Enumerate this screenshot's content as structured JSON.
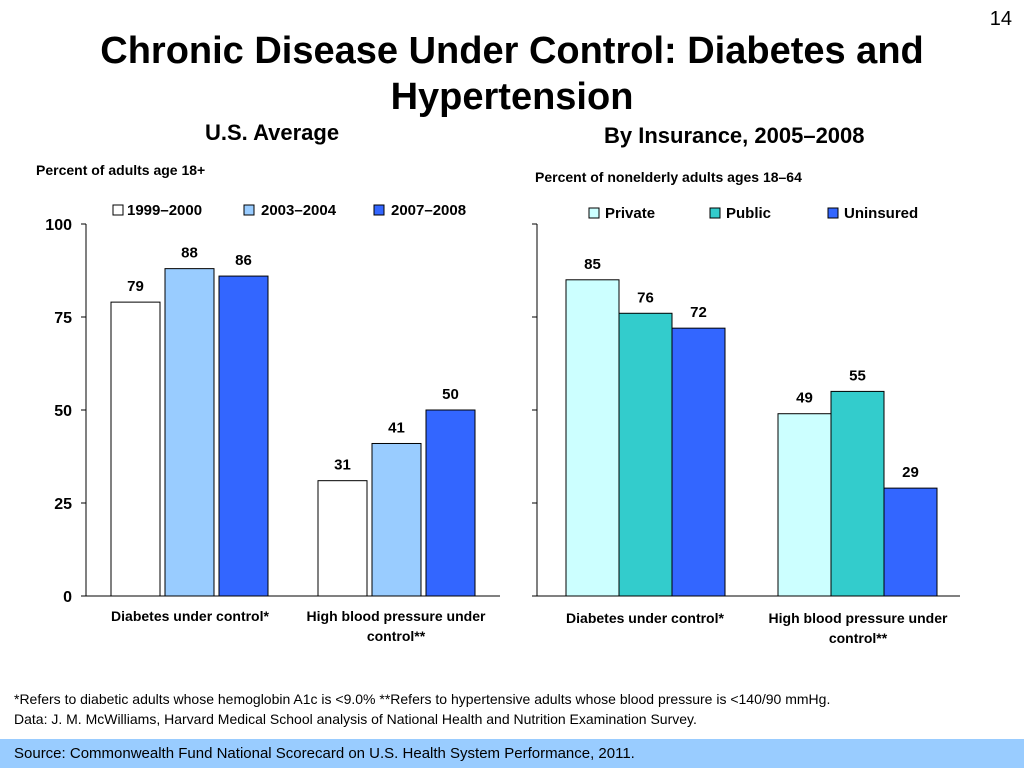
{
  "slide": {
    "number": "14",
    "title": "Chronic Disease Under Control: Diabetes and Hypertension"
  },
  "footnotes": {
    "line1": "*Refers to diabetic adults whose hemoglobin A1c is <9.0% **Refers to hypertensive adults whose blood pressure is <140/90 mmHg.",
    "line2": "Data: J. M. McWilliams, Harvard Medical School analysis of National Health and Nutrition Examination Survey."
  },
  "source": "Source: Commonwealth Fund National Scorecard on U.S. Health System Performance, 2011.",
  "chart_data": [
    {
      "type": "bar",
      "title": "U.S. Average",
      "ylabel": "Percent of adults age 18+",
      "categories": [
        "Diabetes under control*",
        "High blood pressure under control**"
      ],
      "series": [
        {
          "name": "1999–2000",
          "values": [
            79,
            31
          ],
          "color": "#ffffff"
        },
        {
          "name": "2003–2004",
          "values": [
            88,
            41
          ],
          "color": "#99ccff"
        },
        {
          "name": "2007–2008",
          "values": [
            86,
            50
          ],
          "color": "#3366ff"
        }
      ],
      "ylim": [
        0,
        100
      ],
      "yticks": [
        0,
        25,
        50,
        75,
        100
      ],
      "legend": "top",
      "grid": false
    },
    {
      "type": "bar",
      "title": "By Insurance, 2005–2008",
      "ylabel": "Percent of nonelderly adults ages 18–64",
      "categories": [
        "Diabetes under control*",
        "High blood pressure under control**"
      ],
      "series": [
        {
          "name": "Private",
          "values": [
            85,
            49
          ],
          "color": "#ccffff"
        },
        {
          "name": "Public",
          "values": [
            76,
            55
          ],
          "color": "#33cccc"
        },
        {
          "name": "Uninsured",
          "values": [
            72,
            29
          ],
          "color": "#3366ff"
        }
      ],
      "ylim": [
        0,
        100
      ],
      "legend": "top",
      "grid": false
    }
  ]
}
